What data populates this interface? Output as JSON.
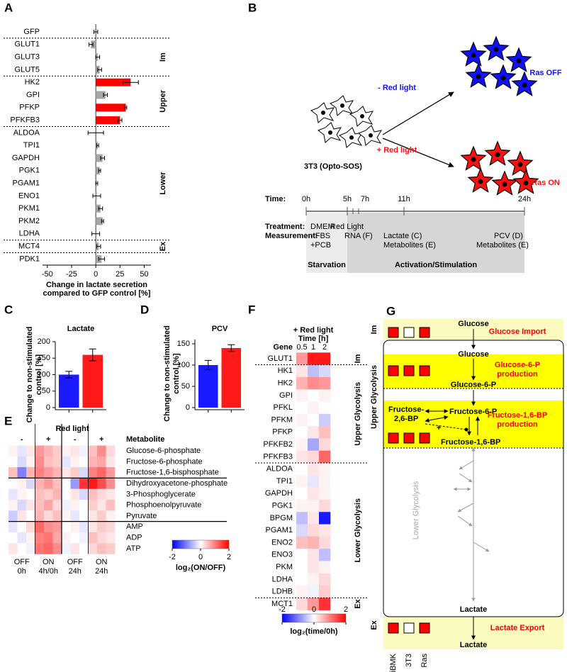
{
  "panels": [
    "A",
    "B",
    "C",
    "D",
    "E",
    "F",
    "G"
  ],
  "chart_data": [
    {
      "type": "bar",
      "orientation": "horizontal",
      "categories": [
        "GFP",
        "GLUT1",
        "GLUT3",
        "GLUT5",
        "HK2",
        "GPI",
        "PFKP",
        "PFKFB3",
        "ALDOA",
        "TPI1",
        "GAPDH",
        "PGK1",
        "PGAM1",
        "ENO1",
        "PKM1",
        "PKM2",
        "LDHA",
        "MCT4",
        "PDK1"
      ],
      "values": [
        0,
        -5,
        2,
        4,
        36,
        10,
        31,
        25,
        0,
        2,
        7,
        4,
        1,
        1,
        5,
        7,
        0,
        3,
        6
      ],
      "errors": [
        2,
        2,
        2,
        2,
        8,
        2,
        1,
        2,
        8,
        1,
        2,
        1,
        1,
        4,
        2,
        1,
        4,
        2,
        3
      ],
      "colors": [
        "#a6a6a6",
        "#a6a6a6",
        "#a6a6a6",
        "#a6a6a6",
        "#ff0000",
        "#a6a6a6",
        "#ff0000",
        "#ff0000",
        "#a6a6a6",
        "#a6a6a6",
        "#a6a6a6",
        "#a6a6a6",
        "#a6a6a6",
        "#a6a6a6",
        "#a6a6a6",
        "#a6a6a6",
        "#a6a6a6",
        "#a6a6a6",
        "#a6a6a6"
      ],
      "xlim": [
        -55,
        57
      ],
      "xticks": [
        -50,
        -25,
        0,
        25,
        50
      ],
      "xlabel": [
        "Change in lactate secretion",
        "compared to GFP control [%]"
      ],
      "group_labels": [
        "Im",
        "Upper",
        "Lower",
        "Ex"
      ]
    },
    {
      "type": "bar",
      "title": "Lactate",
      "ylabel": [
        "Change to non-stimulated",
        "control [%]"
      ],
      "categories": [
        null,
        null
      ],
      "values": [
        100,
        160
      ],
      "errors": [
        10,
        18
      ],
      "colors": [
        "#1a1aff",
        "#ff1a1a"
      ],
      "ylim": [
        0,
        200
      ],
      "yticks": [
        0,
        50,
        100,
        150,
        200
      ]
    },
    {
      "type": "bar",
      "title": "PCV",
      "ylabel": [
        "Change to non-stimulated",
        "control [%]"
      ],
      "categories": [
        null,
        null
      ],
      "values": [
        100,
        140
      ],
      "errors": [
        11,
        8
      ],
      "colors": [
        "#1a1aff",
        "#ff1a1a"
      ],
      "ylim": [
        0,
        160
      ],
      "yticks": [
        0,
        50,
        100,
        150
      ]
    },
    {
      "type": "heatmap",
      "header": "Red light",
      "column_signs": [
        "-",
        "+",
        "-",
        "+"
      ],
      "row_header": "Metabolite",
      "rows": [
        "Glucose-6-phosphate",
        "Fructose-6-phosphate",
        "Fructose-1,6-bisphosphate",
        "Dihydroxyacetone-phosphate",
        "3-Phosphoglycerate",
        "Phosphoenolpyruvate",
        "Pyruvate",
        "AMP",
        "ADP",
        "ATP"
      ],
      "column_groups": [
        [
          "OFF",
          "0h"
        ],
        [
          "ON",
          "4h/0h"
        ],
        [
          "OFF",
          "24h"
        ],
        [
          "ON",
          "24h"
        ]
      ],
      "values": [
        [
          0.1,
          -0.2,
          0.2,
          0.8,
          0.6,
          0.4,
          0.1,
          0.2,
          -0.1,
          0.5,
          0.9,
          0.3
        ],
        [
          0.0,
          -0.3,
          0.1,
          0.9,
          0.5,
          0.4,
          -0.2,
          0.1,
          0.0,
          0.6,
          0.7,
          0.2
        ],
        [
          0.5,
          -1.0,
          0.6,
          1.0,
          0.8,
          0.6,
          0.2,
          0.4,
          -0.3,
          1.0,
          1.2,
          0.8
        ],
        [
          0.0,
          0.1,
          -0.3,
          0.6,
          0.8,
          0.5,
          0.0,
          -0.8,
          1.6,
          1.8,
          1.4,
          0.9
        ],
        [
          -0.2,
          0.1,
          0.0,
          0.5,
          0.4,
          0.6,
          0.0,
          0.2,
          -0.3,
          0.5,
          0.3,
          0.2
        ],
        [
          0.1,
          -0.3,
          0.2,
          0.5,
          0.7,
          0.3,
          -0.1,
          0.1,
          0.0,
          0.4,
          0.2,
          0.5
        ],
        [
          -0.4,
          0.2,
          0.0,
          0.6,
          0.3,
          0.5,
          0.1,
          -0.2,
          0.0,
          0.2,
          0.4,
          0.1
        ],
        [
          -0.2,
          0.0,
          0.3,
          1.2,
          0.9,
          0.8,
          0.0,
          0.1,
          -0.2,
          0.2,
          0.4,
          0.3
        ],
        [
          0.0,
          -0.2,
          0.1,
          1.0,
          1.1,
          0.7,
          0.1,
          0.0,
          -0.1,
          0.5,
          0.3,
          0.2
        ],
        [
          0.2,
          0.0,
          -0.1,
          1.1,
          1.2,
          0.9,
          -0.1,
          0.2,
          0.0,
          0.3,
          0.5,
          0.4
        ]
      ],
      "clim": [
        -2,
        2
      ],
      "cticks": [
        -2,
        0,
        2
      ],
      "clabel": "log₂(ON/OFF)"
    },
    {
      "type": "heatmap",
      "header": [
        "+ Red light",
        "Time [h]"
      ],
      "row_header": "Gene",
      "columns": [
        0.5,
        1,
        2
      ],
      "rows": [
        "GLUT1",
        "HK1",
        "HK2",
        "GPI",
        "PFKL",
        "PFKM",
        "PFKP",
        "PFKFB2",
        "PFKFB3",
        "ALDOA",
        "TPI1",
        "GAPDH",
        "PGK1",
        "BPGM",
        "PGAM1",
        "ENO2",
        "ENO3",
        "PKM",
        "LDHA",
        "LDHB",
        "MCT1"
      ],
      "values": [
        [
          0.8,
          1.8,
          1.8
        ],
        [
          0.2,
          -0.5,
          -0.3
        ],
        [
          0.6,
          0.9,
          0.8
        ],
        [
          0.1,
          0.0,
          0.1
        ],
        [
          0.0,
          0.1,
          0.0
        ],
        [
          0.1,
          0.0,
          -0.4
        ],
        [
          0.0,
          0.2,
          0.5
        ],
        [
          0.1,
          -0.7,
          0.3
        ],
        [
          0.2,
          0.3,
          1.2
        ],
        [
          0.0,
          0.2,
          0.1
        ],
        [
          0.1,
          -0.2,
          0.1
        ],
        [
          0.0,
          0.2,
          0.1
        ],
        [
          0.1,
          0.1,
          0.3
        ],
        [
          -0.5,
          0.2,
          -1.8
        ],
        [
          -0.3,
          0.3,
          0.2
        ],
        [
          0.5,
          0.6,
          0.3
        ],
        [
          0.0,
          0.2,
          -0.5
        ],
        [
          0.0,
          0.2,
          0.1
        ],
        [
          0.0,
          0.1,
          0.3
        ],
        [
          0.1,
          -0.1,
          0.4
        ],
        [
          0.3,
          0.8,
          1.6
        ]
      ],
      "group_labels": [
        "Im",
        "Upper Glycolysis",
        "Lower Glycolysis",
        "Ex"
      ],
      "clim": [
        -2,
        2
      ],
      "cticks": [
        -2,
        0,
        2
      ],
      "clabel": "log₂(time/0h)"
    }
  ],
  "diagram_b": {
    "cell_label": "3T3 (Opto-SOS)",
    "minus_light": "- Red light",
    "plus_light": "+ Red light",
    "ras_off": "Ras OFF",
    "ras_on": "Ras ON",
    "time_label": "Time:",
    "times": [
      "0h",
      "5h",
      "7h",
      "11h",
      "24h"
    ],
    "treatment_label": "Treatment:",
    "measurement_label": "Measurement:",
    "treatments": [
      "DMEM",
      "- FBS",
      "+PCB"
    ],
    "red_light": "Red Light",
    "rna": "RNA (F)",
    "lactate": "Lactate (C)",
    "metabolites_11h": "Metabolites (E)",
    "pcv": "PCV (D)",
    "metabolites_24h": "Metabolites (E)",
    "phases": [
      "Starvation",
      "Activation/Stimulation"
    ]
  },
  "diagram_g": {
    "column_labels": [
      "iBMK",
      "3T3",
      "Ras"
    ],
    "sections": [
      "Im",
      "Upper Glycolysis",
      "Ex"
    ],
    "lower": "Lower Glycolysis",
    "nodes": {
      "glucose_out": "Glucose",
      "glucose_in": "Glucose",
      "g6p": "Glucose-6-P",
      "f26bp": [
        "Fructose-",
        "2,6-BP"
      ],
      "f6p": "Fructose-6-P",
      "f16bp": "Fructose-1,6-BP",
      "plus": "+",
      "lactate_in": "Lactate",
      "lactate_out": "Lactate"
    },
    "processes": [
      {
        "label": [
          "Glucose Import"
        ],
        "boxes": [
          "#ff0000",
          "#ffffff",
          "#ff0000"
        ]
      },
      {
        "label": [
          "Glucose-6-P",
          "production"
        ],
        "boxes": [
          "#ff0000",
          "#ff0000",
          "#ff0000"
        ]
      },
      {
        "label": [
          "Fructose-1,6-BP",
          "production"
        ],
        "boxes": [
          "#ff0000",
          "#ff0000",
          "#ff0000"
        ]
      },
      {
        "label": [
          "Lactate Export"
        ],
        "boxes": [
          "#ff0000",
          "#ffffff",
          "#ff0000"
        ]
      }
    ]
  }
}
